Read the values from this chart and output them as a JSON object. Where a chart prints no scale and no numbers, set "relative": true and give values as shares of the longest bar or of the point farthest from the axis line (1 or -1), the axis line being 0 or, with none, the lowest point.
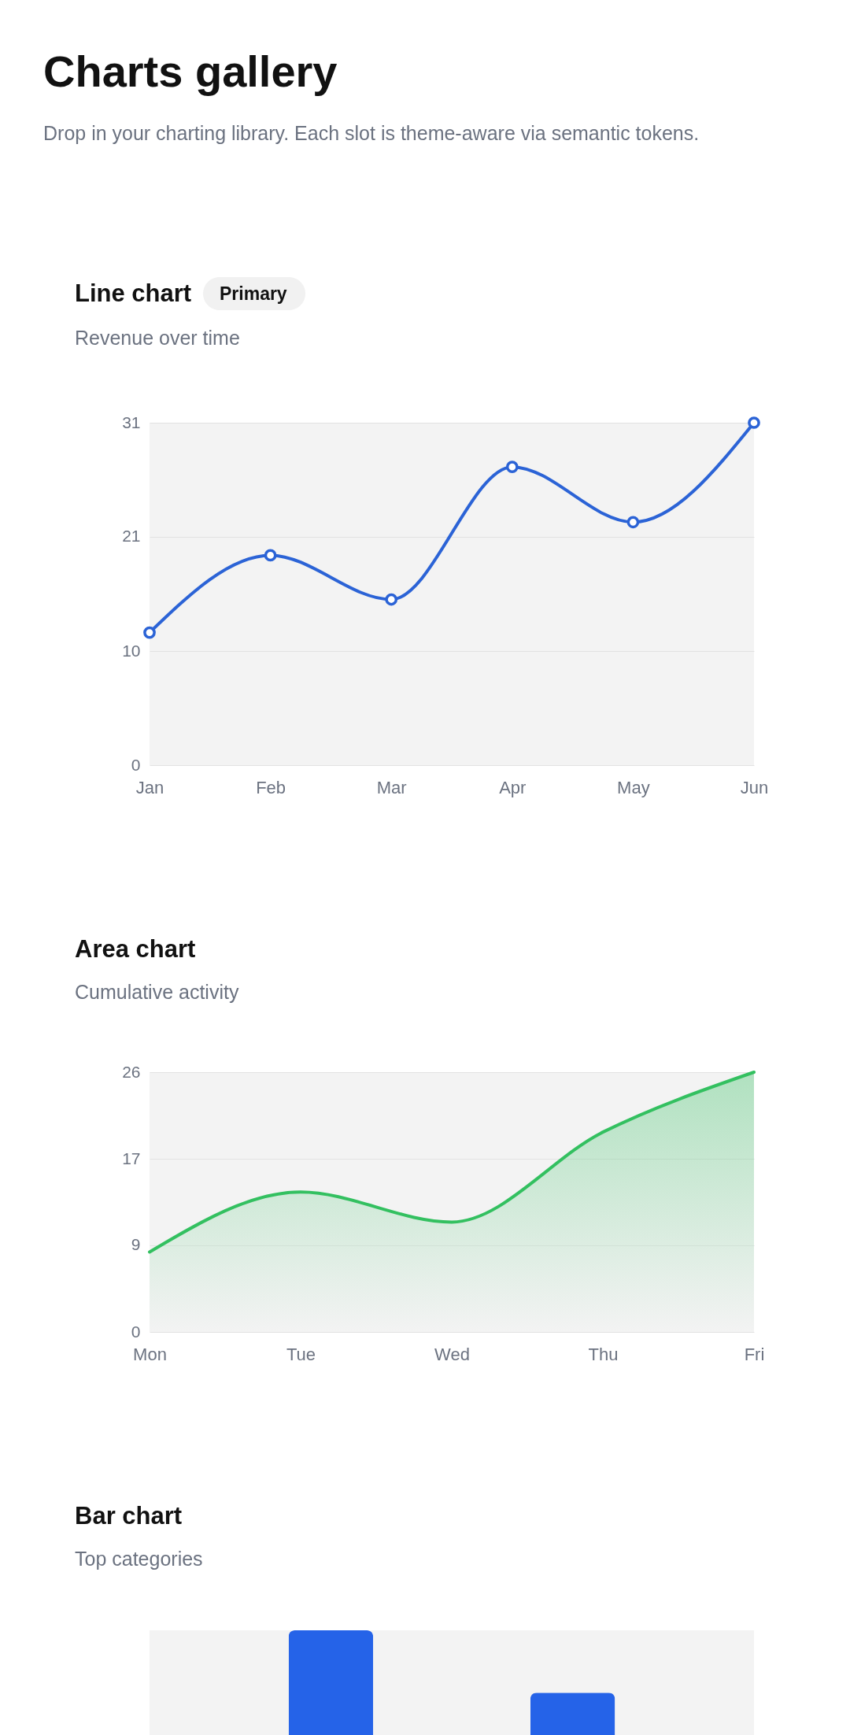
{
  "chart_data": [
    {
      "type": "other",
      "title": "Charts gallery",
      "subtitle": "Drop in your charting library. Each slot is theme-aware via semantic tokens."
    },
    {
      "type": "line",
      "title": "Line chart",
      "annotations": [
        "Primary"
      ],
      "subtitle": "Revenue over time",
      "categories": [
        "Jan",
        "Feb",
        "Mar",
        "Apr",
        "May",
        "Jun"
      ],
      "series": [
        {
          "color": "#2b63d6",
          "values": [
            12,
            19,
            15,
            27,
            22,
            31
          ]
        }
      ],
      "ylim": [
        0,
        31
      ],
      "yticks": [
        0,
        {
          "value": 10.33,
          "label": "10"
        },
        {
          "value": 20.67,
          "label": "21"
        },
        31
      ],
      "grid": "y",
      "marker": "circle"
    },
    {
      "type": "area",
      "title": "Area chart",
      "subtitle": "Cumulative activity",
      "categories": [
        "Mon",
        "Tue",
        "Wed",
        "Thu",
        "Fri"
      ],
      "series": [
        {
          "color": "#33c060",
          "values": [
            8,
            14,
            11,
            20,
            26
          ]
        }
      ],
      "ylim": [
        0,
        26
      ],
      "yticks": [
        0,
        {
          "value": 8.67,
          "label": "9"
        },
        {
          "value": 17.33,
          "label": "17"
        },
        26
      ],
      "grid": "y"
    },
    {
      "type": "bar",
      "title": "Bar chart",
      "subtitle": "Top categories",
      "categories": [
        null,
        null,
        null,
        null,
        null
      ],
      "relative": true,
      "series": [
        {
          "color": "#2563e8",
          "values": [
            null,
            1,
            null,
            0.82,
            null
          ]
        }
      ]
    }
  ]
}
